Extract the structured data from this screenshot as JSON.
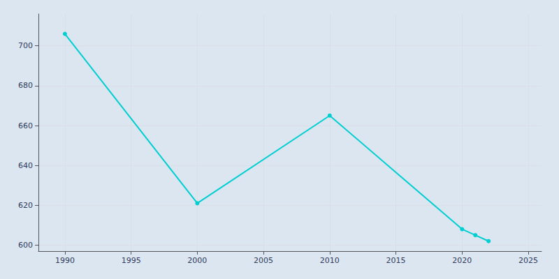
{
  "chart_data": {
    "type": "line",
    "x": [
      1990,
      2000,
      2010,
      2020,
      2021,
      2022
    ],
    "values": [
      706,
      621,
      665,
      608,
      605,
      602
    ],
    "color": "#00CED1",
    "marker": "circle",
    "xlim": [
      1988,
      2026
    ],
    "ylim": [
      597,
      716
    ],
    "xticks": [
      1990,
      1995,
      2000,
      2005,
      2010,
      2015,
      2020,
      2025
    ],
    "yticks": [
      600,
      620,
      640,
      660,
      680,
      700
    ],
    "grid": true
  }
}
